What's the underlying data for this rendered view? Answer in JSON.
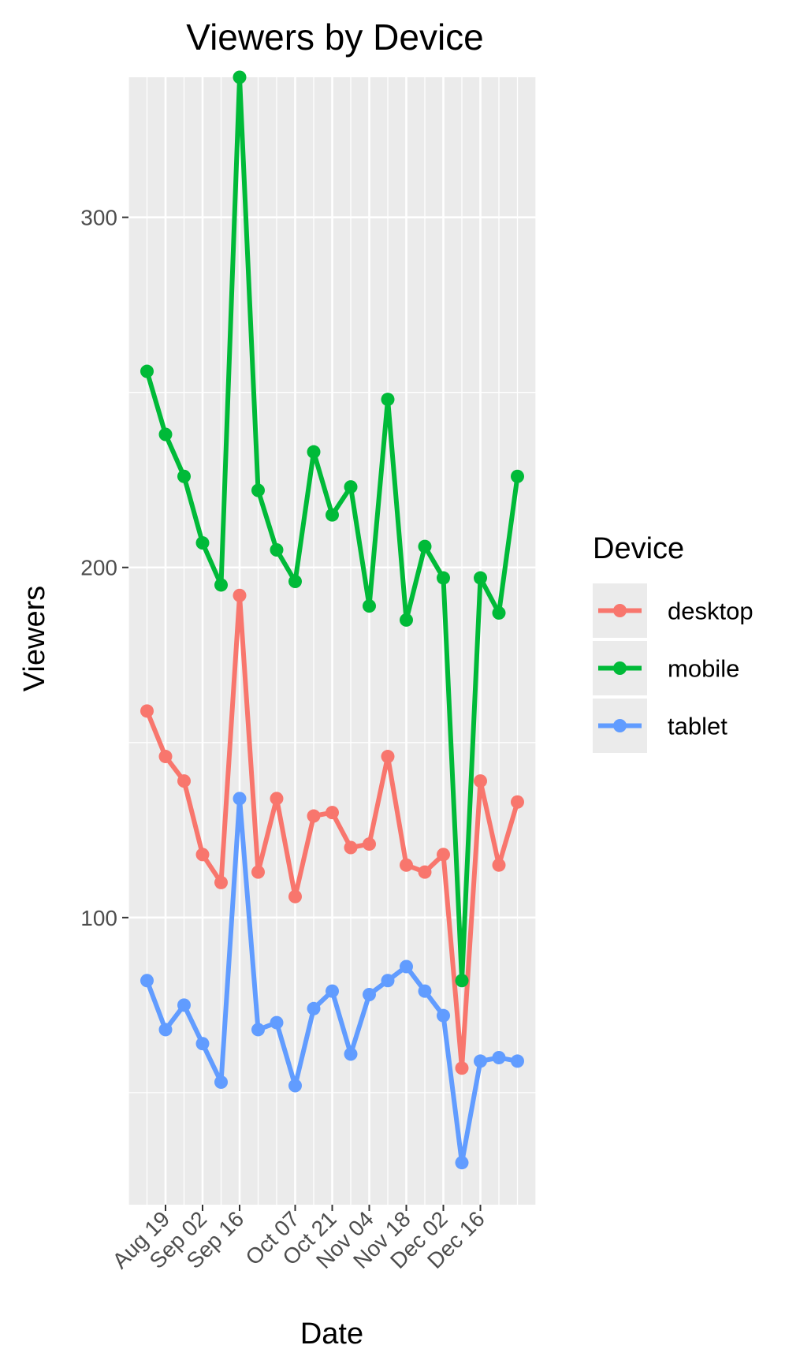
{
  "chart_data": {
    "type": "line",
    "title": "Viewers by Device",
    "xlabel": "Date",
    "ylabel": "Viewers",
    "x": [
      "2019-08-12",
      "2019-08-19",
      "2019-08-26",
      "2019-09-02",
      "2019-09-09",
      "2019-09-16",
      "2019-09-23",
      "2019-09-30",
      "2019-10-07",
      "2019-10-14",
      "2019-10-21",
      "2019-10-28",
      "2019-11-04",
      "2019-11-11",
      "2019-11-18",
      "2019-11-25",
      "2019-12-02",
      "2019-12-09",
      "2019-12-16",
      "2019-12-23",
      "2019-12-30"
    ],
    "x_ticks": [
      {
        "date": "2019-08-19",
        "label": "Aug 19"
      },
      {
        "date": "2019-09-02",
        "label": "Sep 02"
      },
      {
        "date": "2019-09-16",
        "label": "Sep 16"
      },
      {
        "date": "2019-10-07",
        "label": "Oct 07"
      },
      {
        "date": "2019-10-21",
        "label": "Oct 21"
      },
      {
        "date": "2019-11-04",
        "label": "Nov 04"
      },
      {
        "date": "2019-11-18",
        "label": "Nov 18"
      },
      {
        "date": "2019-12-02",
        "label": "Dec 02"
      },
      {
        "date": "2019-12-16",
        "label": "Dec 16"
      }
    ],
    "y_ticks": [
      100,
      200,
      300
    ],
    "ylim": [
      18,
      340
    ],
    "grid": true,
    "legend": {
      "title": "Device",
      "position": "right"
    },
    "series": [
      {
        "name": "desktop",
        "color": "#F8766D",
        "values": [
          159,
          146,
          139,
          118,
          110,
          192,
          113,
          134,
          106,
          129,
          130,
          120,
          121,
          146,
          115,
          113,
          118,
          57,
          139,
          115,
          133
        ]
      },
      {
        "name": "mobile",
        "color": "#00BA38",
        "values": [
          256,
          238,
          226,
          207,
          195,
          340,
          222,
          205,
          196,
          233,
          215,
          223,
          189,
          248,
          185,
          206,
          197,
          82,
          197,
          187,
          226
        ]
      },
      {
        "name": "tablet",
        "color": "#619CFF",
        "values": [
          82,
          68,
          75,
          64,
          53,
          134,
          68,
          70,
          52,
          74,
          79,
          61,
          78,
          82,
          86,
          79,
          72,
          30,
          59,
          60,
          59
        ]
      }
    ]
  }
}
